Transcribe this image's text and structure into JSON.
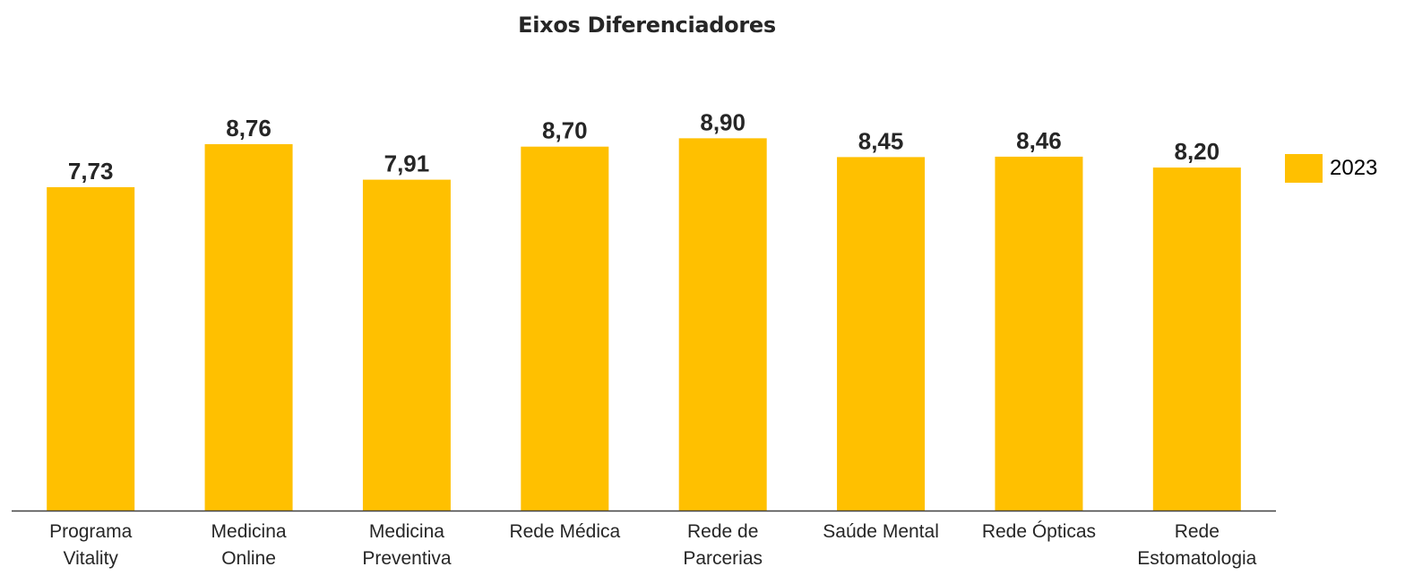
{
  "chart_data": {
    "type": "bar",
    "title": "Eixos Diferenciadores",
    "categories": [
      [
        "Programa",
        "Vitality"
      ],
      [
        "Medicina",
        "Online"
      ],
      [
        "Medicina",
        "Preventiva"
      ],
      [
        "Rede Médica"
      ],
      [
        "Rede de",
        "Parcerias"
      ],
      [
        "Saúde Mental"
      ],
      [
        "Rede Ópticas"
      ],
      [
        "Rede",
        "Estomatologia"
      ]
    ],
    "series": [
      {
        "name": "2023",
        "values": [
          7.73,
          8.76,
          7.91,
          8.7,
          8.9,
          8.45,
          8.46,
          8.2
        ],
        "labels": [
          "7,73",
          "8,76",
          "7,91",
          "8,70",
          "8,90",
          "8,45",
          "8,46",
          "8,20"
        ]
      }
    ],
    "ylim": [
      0,
      10
    ],
    "grid": false,
    "legend_position": "right",
    "bar_color": "#FFC000",
    "axis_color": "#404040"
  }
}
